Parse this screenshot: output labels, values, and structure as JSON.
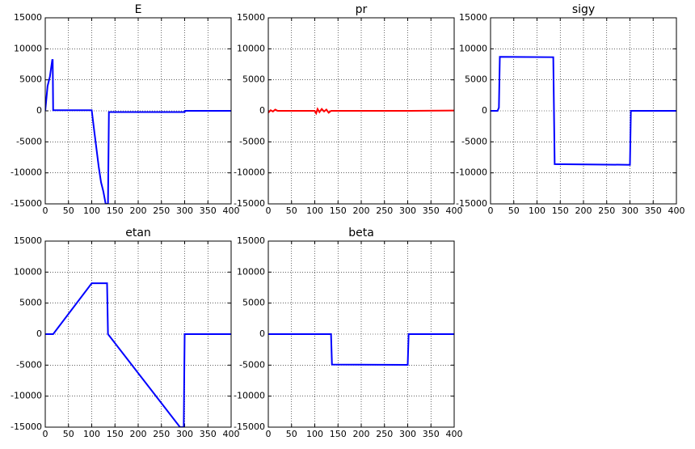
{
  "chart_data": [
    {
      "type": "line",
      "title": "E",
      "color": "#0000ff",
      "x": [
        0,
        5,
        10,
        15,
        16,
        17,
        100,
        105,
        110,
        115,
        120,
        125,
        130,
        133,
        135,
        137,
        300,
        301,
        400
      ],
      "values": [
        0,
        4000,
        5500,
        8200,
        8200,
        100,
        100,
        -3000,
        -6000,
        -9000,
        -11500,
        -13000,
        -15000,
        -15000,
        -15000,
        -200,
        -200,
        0,
        0
      ],
      "xlim": [
        0,
        400
      ],
      "xticks": [
        0,
        50,
        100,
        150,
        200,
        250,
        300,
        350,
        400
      ],
      "ylim": [
        -15000,
        15000
      ],
      "yticks": [
        -15000,
        -10000,
        -5000,
        0,
        5000,
        10000,
        15000
      ],
      "grid": true
    },
    {
      "type": "line",
      "title": "pr",
      "color": "#ff0000",
      "x": [
        0,
        5,
        10,
        15,
        20,
        100,
        103,
        106,
        110,
        115,
        120,
        125,
        130,
        135,
        300,
        400
      ],
      "values": [
        -300,
        100,
        -100,
        200,
        0,
        0,
        -400,
        300,
        -200,
        300,
        -100,
        200,
        -300,
        0,
        0,
        50
      ],
      "xlim": [
        0,
        400
      ],
      "xticks": [
        0,
        50,
        100,
        150,
        200,
        250,
        300,
        350,
        400
      ],
      "ylim": [
        -15000,
        15000
      ],
      "yticks": [
        -15000,
        -10000,
        -5000,
        0,
        5000,
        10000,
        15000
      ],
      "grid": true
    },
    {
      "type": "line",
      "title": "sigy",
      "color": "#0000ff",
      "x": [
        0,
        15,
        18,
        20,
        135,
        138,
        300,
        302,
        400
      ],
      "values": [
        0,
        0,
        500,
        8700,
        8650,
        -8600,
        -8700,
        0,
        0
      ],
      "xlim": [
        0,
        400
      ],
      "xticks": [
        0,
        50,
        100,
        150,
        200,
        250,
        300,
        350,
        400
      ],
      "ylim": [
        -15000,
        15000
      ],
      "yticks": [
        -15000,
        -10000,
        -5000,
        0,
        5000,
        10000,
        15000
      ],
      "grid": true
    },
    {
      "type": "line",
      "title": "etan",
      "color": "#0000ff",
      "x": [
        0,
        17,
        100,
        133,
        135,
        290,
        298,
        300,
        400
      ],
      "values": [
        0,
        0,
        8200,
        8200,
        0,
        -15000,
        -15000,
        0,
        0
      ],
      "xlim": [
        0,
        400
      ],
      "xticks": [
        0,
        50,
        100,
        150,
        200,
        250,
        300,
        350,
        400
      ],
      "ylim": [
        -15000,
        15000
      ],
      "yticks": [
        -15000,
        -10000,
        -5000,
        0,
        5000,
        10000,
        15000
      ],
      "grid": true
    },
    {
      "type": "line",
      "title": "beta",
      "color": "#0000ff",
      "x": [
        0,
        135,
        137,
        300,
        302,
        400
      ],
      "values": [
        0,
        0,
        -4900,
        -4950,
        0,
        0
      ],
      "xlim": [
        0,
        400
      ],
      "xticks": [
        0,
        50,
        100,
        150,
        200,
        250,
        300,
        350,
        400
      ],
      "ylim": [
        -15000,
        15000
      ],
      "yticks": [
        -15000,
        -10000,
        -5000,
        0,
        5000,
        10000,
        15000
      ],
      "grid": true
    }
  ]
}
